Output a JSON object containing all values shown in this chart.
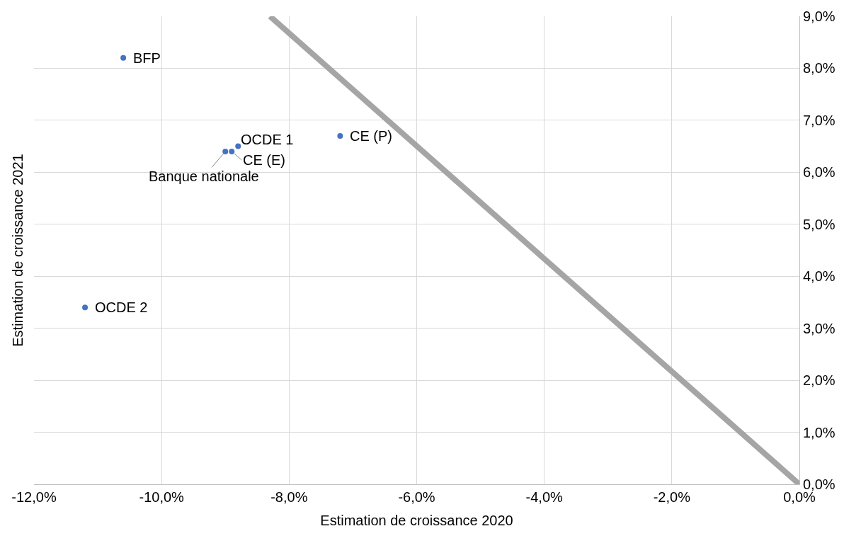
{
  "chart_data": {
    "type": "scatter",
    "xlabel": "Estimation de croissance 2020",
    "ylabel": "Estimation de croissance 2021",
    "series": [
      {
        "marker": "circle",
        "color": "#4472c4",
        "x": [
          -10.6,
          -11.2,
          -8.8,
          -8.9,
          -9.0,
          -7.2
        ],
        "values": [
          8.2,
          3.4,
          6.5,
          6.4,
          6.4,
          6.7
        ]
      },
      {
        "type": "line",
        "color": "#a5a5a5",
        "x": [
          -8.3,
          0
        ],
        "values": [
          9.0,
          0
        ]
      }
    ],
    "annotations": [
      {
        "text": "BFP",
        "x": -10.6,
        "y": 8.2
      },
      {
        "text": "OCDE 2",
        "x": -11.2,
        "y": 3.4
      },
      {
        "text": "OCDE 1",
        "x": -8.8,
        "y": 6.5
      },
      {
        "text": "CE (E)",
        "x": -8.9,
        "y": 6.4
      },
      {
        "text": "Banque nationale",
        "x": -9.0,
        "y": 6.4
      },
      {
        "text": "CE (P)",
        "x": -7.2,
        "y": 6.7
      }
    ],
    "xlim": [
      -12,
      0
    ],
    "ylim": [
      0,
      9
    ],
    "xticks": [
      {
        "value": -12,
        "label": "-12,0%"
      },
      {
        "value": -10,
        "label": "-10,0%"
      },
      {
        "value": -8,
        "label": "-8,0%"
      },
      {
        "value": -6,
        "label": "-6,0%"
      },
      {
        "value": -4,
        "label": "-4,0%"
      },
      {
        "value": -2,
        "label": "-2,0%"
      },
      {
        "value": 0,
        "label": "0,0%"
      }
    ],
    "yticks": [
      {
        "value": 0,
        "label": "0,0%"
      },
      {
        "value": 1,
        "label": "1,0%"
      },
      {
        "value": 2,
        "label": "2,0%"
      },
      {
        "value": 3,
        "label": "3,0%"
      },
      {
        "value": 4,
        "label": "4,0%"
      },
      {
        "value": 5,
        "label": "5,0%"
      },
      {
        "value": 6,
        "label": "6,0%"
      },
      {
        "value": 7,
        "label": "7,0%"
      },
      {
        "value": 8,
        "label": "8,0%"
      },
      {
        "value": 9,
        "label": "9,0%"
      }
    ],
    "grid": true
  }
}
